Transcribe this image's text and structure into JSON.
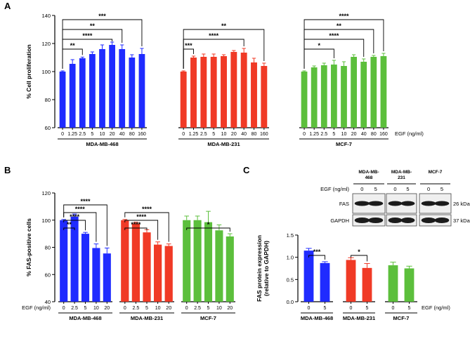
{
  "colors": {
    "mda468": "#1f2bff",
    "mda231": "#f03a26",
    "mcf7": "#5cbf3c",
    "axis": "#000000"
  },
  "panel_labels": {
    "a": "A",
    "b": "B",
    "c": "C"
  },
  "chart_data": [
    {
      "type": "bar",
      "panel": "A",
      "ylabel": "% Cell proliferation",
      "ylim": [
        60,
        140
      ],
      "yticks": [
        60,
        80,
        100,
        120,
        140
      ],
      "x_unit_label": "EGF (ng/ml)",
      "groups": [
        {
          "name": "MDA-MB-468",
          "color_key": "mda468",
          "categories": [
            "0",
            "1.25",
            "2.5",
            "5",
            "10",
            "20",
            "40",
            "80",
            "160"
          ],
          "values": [
            100,
            105.5,
            109.5,
            112.5,
            116,
            119,
            116,
            110,
            112.5
          ],
          "errors": [
            0.5,
            3,
            0.8,
            1.5,
            3,
            2,
            3,
            2,
            4
          ]
        },
        {
          "name": "MDA-MB-231",
          "color_key": "mda231",
          "categories": [
            "0",
            "1.25",
            "2.5",
            "5",
            "10",
            "20",
            "40",
            "80",
            "160"
          ],
          "values": [
            100,
            110,
            110.5,
            110.5,
            111,
            114,
            113.5,
            106.5,
            104
          ],
          "errors": [
            0.5,
            1,
            2,
            2,
            1,
            1,
            3,
            3,
            2
          ]
        },
        {
          "name": "MCF-7",
          "color_key": "mcf7",
          "categories": [
            "0",
            "1.25",
            "2.5",
            "5",
            "10",
            "20",
            "40",
            "80",
            "160"
          ],
          "values": [
            100,
            103,
            104.5,
            105,
            104,
            110.5,
            107,
            110.5,
            111
          ],
          "errors": [
            0.5,
            1,
            1.5,
            3,
            3,
            1.5,
            2,
            1,
            2
          ]
        }
      ],
      "significance": [
        {
          "group": 0,
          "from": 0,
          "to": 2,
          "text": "**"
        },
        {
          "group": 0,
          "from": 0,
          "to": 5,
          "text": "****"
        },
        {
          "group": 0,
          "from": 0,
          "to": 6,
          "text": "**"
        },
        {
          "group": 0,
          "from": 0,
          "to": 8,
          "text": "***"
        },
        {
          "group": 1,
          "from": 0,
          "to": 1,
          "text": "***"
        },
        {
          "group": 1,
          "from": 0,
          "to": 6,
          "text": "****"
        },
        {
          "group": 1,
          "from": 0,
          "to": 8,
          "text": "**"
        },
        {
          "group": 2,
          "from": 0,
          "to": 3,
          "text": "*"
        },
        {
          "group": 2,
          "from": 0,
          "to": 6,
          "text": "****"
        },
        {
          "group": 2,
          "from": 0,
          "to": 7,
          "text": "**"
        },
        {
          "group": 2,
          "from": 0,
          "to": 8,
          "text": "****"
        }
      ]
    },
    {
      "type": "bar",
      "panel": "B",
      "ylabel": "% FAS-positive cells",
      "ylim": [
        40,
        120
      ],
      "yticks": [
        40,
        60,
        80,
        100,
        120
      ],
      "x_unit_label": "EGF (ng/ml)",
      "groups": [
        {
          "name": "MDA-MB-468",
          "color_key": "mda468",
          "categories": [
            "0",
            "2.5",
            "5",
            "10",
            "20"
          ],
          "values": [
            100,
            102.5,
            90,
            79.5,
            75.5
          ],
          "errors": [
            0.5,
            2,
            1,
            3,
            4
          ]
        },
        {
          "name": "MDA-MB-231",
          "color_key": "mda231",
          "categories": [
            "0",
            "2.5",
            "5",
            "10",
            "20"
          ],
          "values": [
            100,
            97.5,
            91,
            82,
            81
          ],
          "errors": [
            0.5,
            1,
            2,
            2,
            1.5
          ]
        },
        {
          "name": "MCF-7",
          "color_key": "mcf7",
          "categories": [
            "0",
            "2.5",
            "5",
            "10",
            "20"
          ],
          "values": [
            100,
            100,
            98.5,
            92.5,
            88
          ],
          "errors": [
            3,
            3,
            8,
            4,
            2
          ]
        }
      ],
      "significance": [
        {
          "group": 0,
          "from": 0,
          "to": 1,
          "text": "**"
        },
        {
          "group": 0,
          "from": 0,
          "to": 2,
          "text": "****"
        },
        {
          "group": 0,
          "from": 0,
          "to": 3,
          "text": "****"
        },
        {
          "group": 0,
          "from": 0,
          "to": 4,
          "text": "****"
        },
        {
          "group": 1,
          "from": 0,
          "to": 2,
          "text": "****"
        },
        {
          "group": 1,
          "from": 0,
          "to": 3,
          "text": "****"
        },
        {
          "group": 1,
          "from": 0,
          "to": 4,
          "text": "****"
        },
        {
          "group": 2,
          "from": 0,
          "to": 4,
          "text": "*"
        }
      ]
    },
    {
      "type": "bar",
      "panel": "C",
      "ylabel": "FAS protein expression\n(relative to GAPDH)",
      "ylim": [
        0,
        1.5
      ],
      "yticks": [
        0.0,
        0.5,
        1.0,
        1.5
      ],
      "x_unit_label": "EGF (ng/ml)",
      "groups": [
        {
          "name": "MDA-MB-468",
          "color_key": "mda468",
          "categories": [
            "0",
            "5"
          ],
          "values": [
            1.15,
            0.87
          ],
          "errors": [
            0.05,
            0.03
          ]
        },
        {
          "name": "MDA-MB-231",
          "color_key": "mda231",
          "categories": [
            "0",
            "5"
          ],
          "values": [
            0.94,
            0.76
          ],
          "errors": [
            0.05,
            0.1
          ]
        },
        {
          "name": "MCF-7",
          "color_key": "mcf7",
          "categories": [
            "0",
            "5"
          ],
          "values": [
            0.82,
            0.75
          ],
          "errors": [
            0.07,
            0.05
          ]
        }
      ],
      "significance": [
        {
          "group": 0,
          "from": 0,
          "to": 1,
          "text": "***"
        },
        {
          "group": 1,
          "from": 0,
          "to": 1,
          "text": "*"
        }
      ]
    }
  ],
  "western_blot": {
    "egf_label": "EGF (ng/ml)",
    "lane_labels": [
      "0",
      "5"
    ],
    "cell_lines": [
      "MDA-MB-\n468",
      "MDA-MB-\n231",
      "MCF-7"
    ],
    "bands": [
      {
        "name": "FAS",
        "size": "26 kDa"
      },
      {
        "name": "GAPDH",
        "size": "37 kDa"
      }
    ]
  }
}
